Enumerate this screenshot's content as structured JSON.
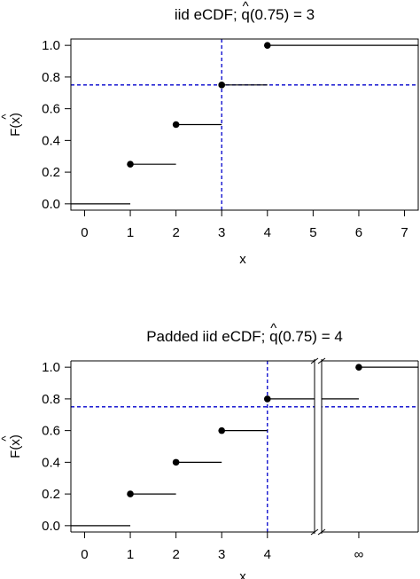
{
  "chart_data": [
    {
      "type": "step",
      "title_prefix": "iid eCDF; ",
      "title_hat": "^",
      "title_q": "q",
      "title_suffix": "(0.75) = 3",
      "xlabel": "x",
      "ylabel_hat": "^",
      "ylabel": "F(x)",
      "xlim": [
        -0.3,
        7.3
      ],
      "ylim": [
        -0.04,
        1.04
      ],
      "xticks": [
        0,
        1,
        2,
        3,
        4,
        5,
        6,
        7
      ],
      "xtick_labels": [
        "0",
        "1",
        "2",
        "3",
        "4",
        "5",
        "6",
        "7"
      ],
      "yticks": [
        0,
        0.2,
        0.4,
        0.6,
        0.8,
        1.0
      ],
      "ytick_labels": [
        "0.0",
        "0.2",
        "0.4",
        "0.6",
        "0.8",
        "1.0"
      ],
      "steps": [
        {
          "x0": -0.3,
          "x1": 1,
          "y": 0.0,
          "dot": false
        },
        {
          "x0": 1,
          "x1": 2,
          "y": 0.25,
          "dot": true
        },
        {
          "x0": 2,
          "x1": 3,
          "y": 0.5,
          "dot": true
        },
        {
          "x0": 3,
          "x1": 4,
          "y": 0.75,
          "dot": true
        },
        {
          "x0": 4,
          "x1": 7.3,
          "y": 1.0,
          "dot": true
        }
      ],
      "hline": 0.75,
      "vline": 3,
      "ref_color": "#0000cc"
    },
    {
      "type": "step",
      "title_prefix": "Padded iid eCDF; ",
      "title_hat": "^",
      "title_q": "q",
      "title_suffix": "(0.75) = 4",
      "xlabel": "x",
      "ylabel_hat": "^",
      "ylabel": "F(x)",
      "xlim": [
        -0.3,
        7.3
      ],
      "ylim": [
        -0.04,
        1.04
      ],
      "xticks": [
        0,
        1,
        2,
        3,
        4,
        6
      ],
      "xtick_labels": [
        "0",
        "1",
        "2",
        "3",
        "4",
        "∞"
      ],
      "yticks": [
        0,
        0.2,
        0.4,
        0.6,
        0.8,
        1.0
      ],
      "ytick_labels": [
        "0.0",
        "0.2",
        "0.4",
        "0.6",
        "0.8",
        "1.0"
      ],
      "steps": [
        {
          "x0": -0.3,
          "x1": 1,
          "y": 0.0,
          "dot": false
        },
        {
          "x0": 1,
          "x1": 2,
          "y": 0.2,
          "dot": true
        },
        {
          "x0": 2,
          "x1": 3,
          "y": 0.4,
          "dot": true
        },
        {
          "x0": 3,
          "x1": 4,
          "y": 0.6,
          "dot": true
        },
        {
          "x0": 4,
          "x1": 6,
          "y": 0.8,
          "dot": true
        },
        {
          "x0": 6,
          "x1": 7.3,
          "y": 1.0,
          "dot": true
        }
      ],
      "hline": 0.75,
      "vline": 4,
      "axis_break": true,
      "ref_color": "#0000cc"
    }
  ]
}
